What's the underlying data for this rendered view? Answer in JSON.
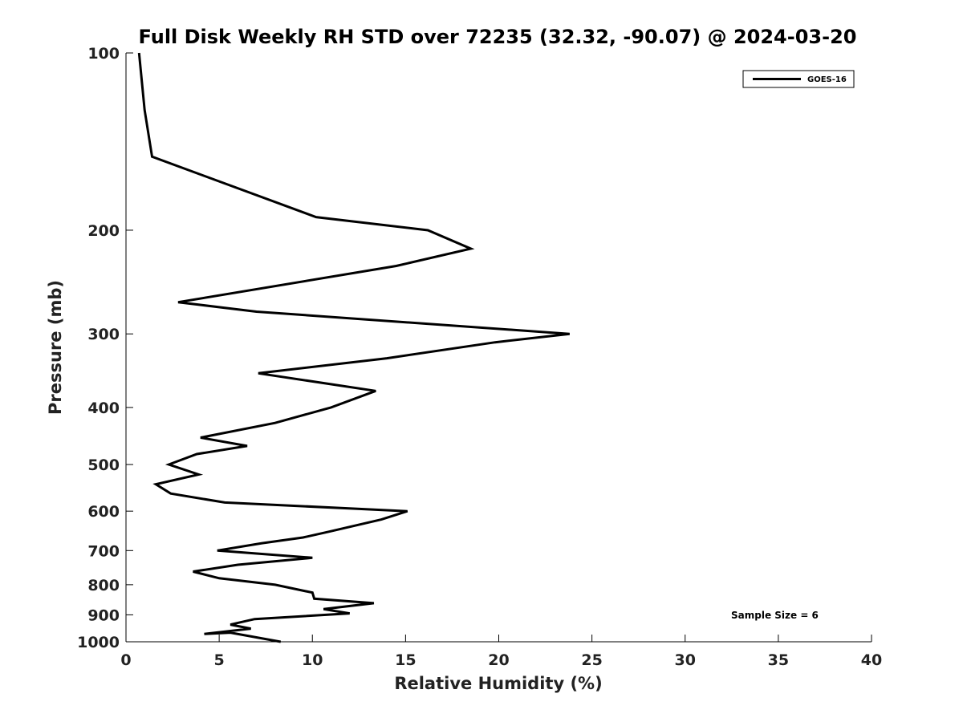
{
  "chart_data": {
    "type": "line",
    "title": "Full Disk Weekly RH STD over 72235 (32.32, -90.07) @ 2024-03-20",
    "xlabel": "Relative Humidity (%)",
    "ylabel": "Pressure (mb)",
    "xlim": [
      0,
      40
    ],
    "ylim": [
      100,
      1000
    ],
    "yscale": "log",
    "y_inverted": true,
    "x_ticks": [
      "0",
      "5",
      "10",
      "15",
      "20",
      "25",
      "30",
      "35",
      "40"
    ],
    "y_ticks": [
      "100",
      "200",
      "300",
      "400",
      "500",
      "600",
      "700",
      "800",
      "900",
      "1000"
    ],
    "grid": false,
    "legend": {
      "entries": [
        "GOES-16"
      ],
      "location": "top-right"
    },
    "annotation": "Sample Size = 6",
    "series": [
      {
        "name": "GOES-16",
        "color": "#000000",
        "points": [
          [
            0.7,
            100
          ],
          [
            1.0,
            125
          ],
          [
            1.4,
            150
          ],
          [
            10.2,
            190
          ],
          [
            16.2,
            200
          ],
          [
            18.5,
            215
          ],
          [
            14.5,
            230
          ],
          [
            2.8,
            265
          ],
          [
            7.0,
            275
          ],
          [
            23.8,
            300
          ],
          [
            19.8,
            310
          ],
          [
            14.0,
            330
          ],
          [
            7.1,
            350
          ],
          [
            13.4,
            375
          ],
          [
            11.0,
            400
          ],
          [
            8.0,
            425
          ],
          [
            4.0,
            450
          ],
          [
            6.5,
            465
          ],
          [
            3.8,
            480
          ],
          [
            2.3,
            500
          ],
          [
            3.9,
            520
          ],
          [
            1.6,
            540
          ],
          [
            2.4,
            560
          ],
          [
            5.3,
            580
          ],
          [
            15.1,
            600
          ],
          [
            13.7,
            620
          ],
          [
            10.9,
            650
          ],
          [
            9.5,
            665
          ],
          [
            7.3,
            680
          ],
          [
            4.9,
            700
          ],
          [
            10.0,
            720
          ],
          [
            6.0,
            740
          ],
          [
            3.6,
            760
          ],
          [
            5.0,
            780
          ],
          [
            8.0,
            800
          ],
          [
            10.0,
            825
          ],
          [
            10.1,
            845
          ],
          [
            13.3,
            860
          ],
          [
            10.6,
            880
          ],
          [
            12.0,
            895
          ],
          [
            6.9,
            915
          ],
          [
            5.6,
            935
          ],
          [
            6.7,
            950
          ],
          [
            4.2,
            970
          ],
          [
            5.6,
            965
          ],
          [
            8.3,
            1000
          ]
        ]
      }
    ]
  }
}
